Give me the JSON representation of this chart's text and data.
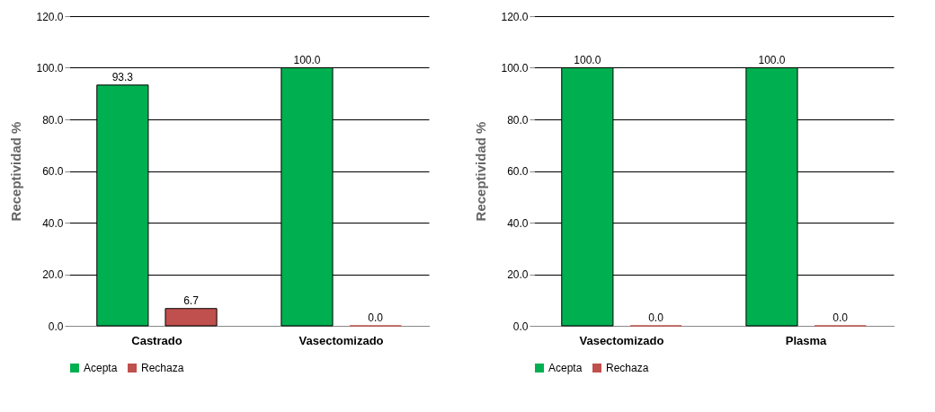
{
  "chart_data": [
    {
      "type": "bar",
      "categories": [
        "Castrado",
        "Vasectomizado"
      ],
      "ylabel": "Receptividad %",
      "ylim": [
        0,
        120
      ],
      "yticks": [
        {
          "value": 0,
          "label": "0.0"
        },
        {
          "value": 20,
          "label": "20.0"
        },
        {
          "value": 40,
          "label": "40.0"
        },
        {
          "value": 60,
          "label": "60.0"
        },
        {
          "value": 80,
          "label": "80.0"
        },
        {
          "value": 100,
          "label": "100.0"
        },
        {
          "value": 120,
          "label": "120.0"
        }
      ],
      "grid": "y",
      "legend": "bottom",
      "series": [
        {
          "name": "Acepta",
          "color": "#00b050",
          "values": [
            93.3,
            100
          ],
          "value_labels": [
            "93.3",
            "100.0"
          ]
        },
        {
          "name": "Rechaza",
          "color": "#c0504d",
          "values": [
            6.7,
            0
          ],
          "value_labels": [
            "6.7",
            "0.0"
          ]
        }
      ]
    },
    {
      "type": "bar",
      "categories": [
        "Vasectomizado",
        "Plasma"
      ],
      "ylabel": "Receptividad %",
      "ylim": [
        0,
        120
      ],
      "yticks": [
        {
          "value": 0,
          "label": "0.0"
        },
        {
          "value": 20,
          "label": "20.0"
        },
        {
          "value": 40,
          "label": "40.0"
        },
        {
          "value": 60,
          "label": "60.0"
        },
        {
          "value": 80,
          "label": "80.0"
        },
        {
          "value": 100,
          "label": "100.0"
        },
        {
          "value": 120,
          "label": "120.0"
        }
      ],
      "grid": "y",
      "legend": "bottom",
      "series": [
        {
          "name": "Acepta",
          "color": "#00b050",
          "values": [
            100,
            100
          ],
          "value_labels": [
            "100.0",
            "100.0"
          ]
        },
        {
          "name": "Rechaza",
          "color": "#c0504d",
          "values": [
            0,
            0
          ],
          "value_labels": [
            "0.0",
            "0.0"
          ]
        }
      ]
    }
  ]
}
